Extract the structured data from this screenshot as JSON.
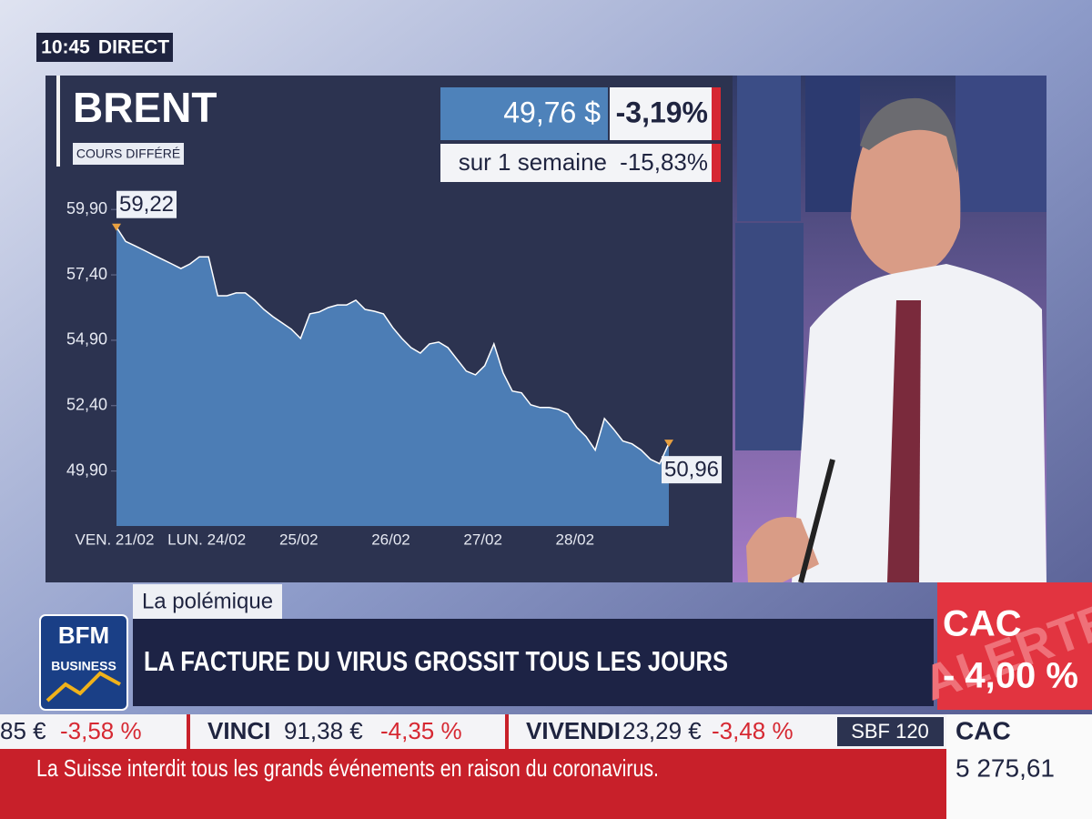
{
  "header": {
    "time": "10:45",
    "status": "DIRECT"
  },
  "chart_data": {
    "type": "area",
    "title": "BRENT",
    "subtitle": "COURS DIFFÉRÉ",
    "categories": [
      "VEN. 21/02",
      null,
      null,
      null,
      null,
      null,
      null,
      null,
      null,
      null,
      "LUN. 24/02",
      null,
      null,
      null,
      null,
      null,
      null,
      null,
      null,
      null,
      "25/02",
      null,
      null,
      null,
      null,
      null,
      null,
      null,
      null,
      null,
      "26/02",
      null,
      null,
      null,
      null,
      null,
      null,
      null,
      null,
      null,
      "27/02",
      null,
      null,
      null,
      null,
      null,
      null,
      null,
      null,
      null,
      "28/02",
      null,
      null,
      null,
      null,
      null,
      null,
      null,
      null,
      null,
      null
    ],
    "series": [
      {
        "name": "BRENT",
        "color": "#4e82ba",
        "values": [
          59.22,
          58.68,
          58.51,
          58.34,
          58.16,
          57.99,
          57.82,
          57.64,
          57.82,
          58.09,
          58.09,
          56.6,
          56.6,
          56.71,
          56.71,
          56.43,
          56.08,
          55.8,
          55.56,
          55.32,
          54.97,
          55.91,
          55.98,
          56.15,
          56.25,
          56.25,
          56.43,
          56.08,
          56.01,
          55.91,
          55.39,
          54.97,
          54.62,
          54.41,
          54.76,
          54.83,
          54.62,
          54.17,
          53.72,
          53.58,
          53.93,
          54.76,
          53.65,
          52.96,
          52.89,
          52.43,
          52.33,
          52.33,
          52.26,
          52.09,
          51.57,
          51.22,
          50.7,
          51.91,
          51.5,
          51.05,
          50.94,
          50.7,
          50.35,
          50.18,
          50.96
        ],
        "value_labels": [
          "59,22",
          null,
          null,
          null,
          null,
          null,
          null,
          null,
          null,
          null,
          null,
          null,
          null,
          null,
          null,
          null,
          null,
          null,
          null,
          null,
          null,
          null,
          null,
          null,
          null,
          null,
          null,
          null,
          null,
          null,
          null,
          null,
          null,
          null,
          null,
          null,
          null,
          null,
          null,
          null,
          null,
          null,
          null,
          null,
          null,
          null,
          null,
          null,
          null,
          null,
          null,
          null,
          null,
          null,
          null,
          null,
          null,
          null,
          null,
          null,
          "50,96"
        ]
      }
    ],
    "ylim": [
      47.8,
      60.95
    ],
    "yticks": [
      {
        "value": 59.9,
        "label": "59,90"
      },
      {
        "value": 57.4,
        "label": "57,40"
      },
      {
        "value": 54.9,
        "label": "54,90"
      },
      {
        "value": 52.4,
        "label": "52,40"
      },
      {
        "value": 49.9,
        "label": "49,90"
      }
    ],
    "grid": false
  },
  "quote": {
    "price": "49,76 $",
    "change": "-3,19%",
    "week_label": "sur 1 semaine",
    "week_change": "-15,83%"
  },
  "banner": {
    "tag": "La polémique",
    "headline": "LA FACTURE DU VIRUS GROSSIT TOUS LES JOURS",
    "logo_top": "BFM",
    "logo_bottom": "BUSINESS"
  },
  "alert": {
    "index": "CAC",
    "change": "- 4,00 %",
    "watermark": "ALERTE"
  },
  "ticker": {
    "items": [
      {
        "price": "85 €",
        "change": "-3,58 %"
      },
      {
        "name": "VINCI",
        "price": "91,38 €",
        "change": "-4,35 %"
      },
      {
        "name": "VIVENDI",
        "price": "23,29 €",
        "change": "-3,48 %"
      }
    ],
    "index": "SBF 120",
    "news": "La Suisse interdit tous les grands événements en raison du coronavirus."
  },
  "index_box": {
    "name": "CAC",
    "value": "5 275,61"
  }
}
